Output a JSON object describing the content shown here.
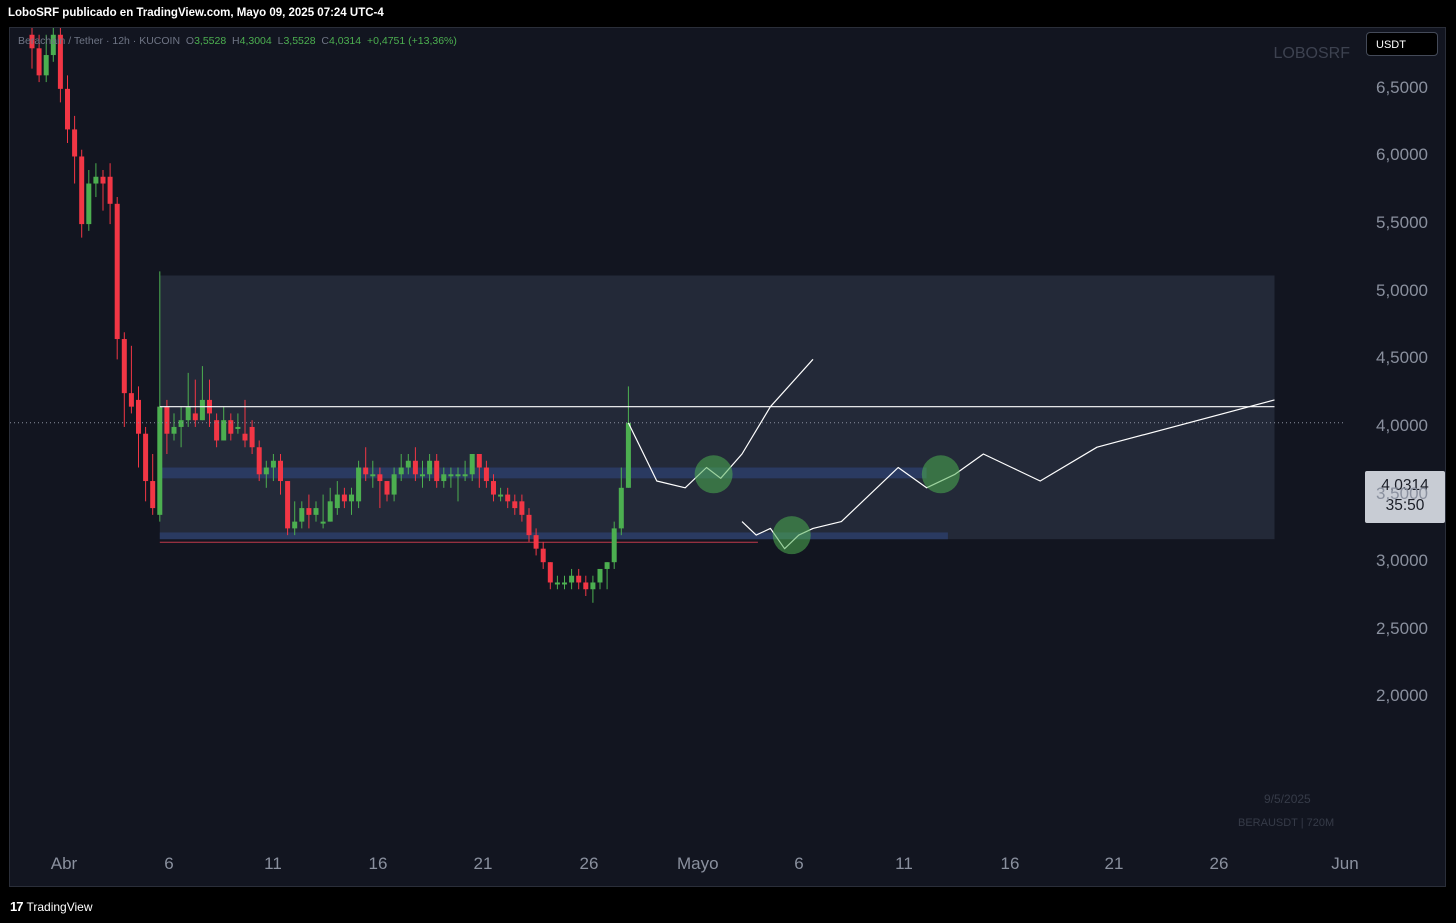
{
  "header": {
    "publisher_line": "LoboSRF publicado en TradingView.com, Mayo 09, 2025 07:24 UTC-4"
  },
  "legend": {
    "symbol_desc": "Berachain / Tether · 12h · KUCOIN",
    "o_label": "O",
    "o_value": "3,5528",
    "h_label": "H",
    "h_value": "4,3004",
    "l_label": "L",
    "l_value": "3,5528",
    "c_label": "C",
    "c_value": "4,0314",
    "change": "+0,4751 (+13,36%)"
  },
  "watermark": "LOBOSRF",
  "currency_button": "USDT",
  "price_tag": {
    "price": "4,0314",
    "countdown": "35:50"
  },
  "footer_date": "9/5/2025",
  "footer_symbol": "BERAUSDT | 720M",
  "tradingview_logo": "TradingView",
  "colors": {
    "up": "#4caf50",
    "down": "#f23645",
    "background": "#121520",
    "zone": "#2a3040",
    "support": "#2b3c66",
    "target_circle": "#4caf50"
  },
  "chart_data": {
    "type": "candlestick",
    "timeframe": "12h",
    "y_ticks": [
      "6,5000",
      "6,0000",
      "5,5000",
      "5,0000",
      "4,5000",
      "4,0000",
      "3,5000",
      "3,0000",
      "2,5000",
      "2,0000"
    ],
    "y_tick_values": [
      6.5,
      6.0,
      5.5,
      5.0,
      4.5,
      4.0,
      3.5,
      3.0,
      2.5,
      2.0
    ],
    "x_ticks": [
      "Abr",
      "6",
      "11",
      "16",
      "21",
      "26",
      "Mayo",
      "6",
      "11",
      "16",
      "21",
      "26",
      "Jun"
    ],
    "ylim": [
      1.7,
      6.95
    ],
    "candles": [
      [
        6.9,
        6.8,
        6.95,
        6.65
      ],
      [
        6.8,
        6.6,
        6.9,
        6.55
      ],
      [
        6.6,
        6.75,
        6.9,
        6.55
      ],
      [
        6.75,
        6.9,
        6.95,
        6.7
      ],
      [
        6.9,
        6.5,
        6.95,
        6.4
      ],
      [
        6.5,
        6.2,
        6.6,
        6.1
      ],
      [
        6.2,
        6.0,
        6.3,
        5.8
      ],
      [
        6.0,
        5.5,
        6.05,
        5.4
      ],
      [
        5.5,
        5.8,
        5.9,
        5.45
      ],
      [
        5.8,
        5.85,
        5.95,
        5.7
      ],
      [
        5.85,
        5.8,
        5.9,
        5.6
      ],
      [
        5.85,
        5.65,
        5.95,
        5.5
      ],
      [
        5.65,
        4.65,
        5.7,
        4.5
      ],
      [
        4.65,
        4.25,
        4.7,
        4.0
      ],
      [
        4.25,
        4.15,
        4.6,
        4.1
      ],
      [
        4.2,
        3.95,
        4.3,
        3.7
      ],
      [
        3.95,
        3.6,
        4.0,
        3.45
      ],
      [
        3.6,
        3.4,
        3.8,
        3.35
      ],
      [
        3.35,
        4.15,
        5.15,
        3.3
      ],
      [
        4.15,
        3.95,
        4.2,
        3.8
      ],
      [
        3.95,
        4.0,
        4.1,
        3.9
      ],
      [
        4.0,
        4.05,
        4.15,
        3.85
      ],
      [
        4.05,
        4.15,
        4.4,
        4.0
      ],
      [
        4.1,
        4.05,
        4.35,
        4.0
      ],
      [
        4.05,
        4.2,
        4.45,
        4.05
      ],
      [
        4.2,
        4.1,
        4.35,
        4.0
      ],
      [
        4.05,
        3.9,
        4.1,
        3.85
      ],
      [
        3.9,
        4.05,
        4.15,
        3.9
      ],
      [
        4.05,
        3.95,
        4.1,
        3.9
      ],
      [
        4.0,
        4.0,
        4.1,
        3.95
      ],
      [
        3.95,
        3.9,
        4.2,
        3.85
      ],
      [
        4.0,
        3.85,
        4.05,
        3.8
      ],
      [
        3.85,
        3.65,
        3.9,
        3.6
      ],
      [
        3.65,
        3.7,
        3.75,
        3.55
      ],
      [
        3.7,
        3.75,
        3.8,
        3.6
      ],
      [
        3.75,
        3.6,
        3.8,
        3.5
      ],
      [
        3.6,
        3.25,
        3.6,
        3.2
      ],
      [
        3.25,
        3.3,
        3.45,
        3.2
      ],
      [
        3.3,
        3.4,
        3.45,
        3.25
      ],
      [
        3.4,
        3.35,
        3.5,
        3.25
      ],
      [
        3.35,
        3.4,
        3.45,
        3.3
      ],
      [
        3.3,
        3.3,
        3.5,
        3.25
      ],
      [
        3.3,
        3.45,
        3.55,
        3.3
      ],
      [
        3.4,
        3.5,
        3.6,
        3.35
      ],
      [
        3.5,
        3.45,
        3.55,
        3.4
      ],
      [
        3.45,
        3.5,
        3.55,
        3.35
      ],
      [
        3.45,
        3.7,
        3.75,
        3.4
      ],
      [
        3.7,
        3.65,
        3.85,
        3.6
      ],
      [
        3.65,
        3.65,
        3.75,
        3.55
      ],
      [
        3.65,
        3.6,
        3.7,
        3.4
      ],
      [
        3.6,
        3.5,
        3.6,
        3.45
      ],
      [
        3.5,
        3.65,
        3.7,
        3.45
      ],
      [
        3.65,
        3.7,
        3.8,
        3.6
      ],
      [
        3.7,
        3.75,
        3.8,
        3.65
      ],
      [
        3.75,
        3.65,
        3.85,
        3.6
      ],
      [
        3.65,
        3.65,
        3.75,
        3.55
      ],
      [
        3.65,
        3.75,
        3.8,
        3.6
      ],
      [
        3.75,
        3.6,
        3.8,
        3.55
      ],
      [
        3.6,
        3.65,
        3.7,
        3.55
      ],
      [
        3.65,
        3.65,
        3.7,
        3.55
      ],
      [
        3.65,
        3.65,
        3.7,
        3.45
      ],
      [
        3.65,
        3.65,
        3.75,
        3.6
      ],
      [
        3.65,
        3.8,
        3.8,
        3.6
      ],
      [
        3.8,
        3.7,
        3.8,
        3.55
      ],
      [
        3.7,
        3.6,
        3.75,
        3.55
      ],
      [
        3.6,
        3.5,
        3.65,
        3.45
      ],
      [
        3.5,
        3.5,
        3.55,
        3.45
      ],
      [
        3.5,
        3.45,
        3.55,
        3.4
      ],
      [
        3.45,
        3.4,
        3.5,
        3.35
      ],
      [
        3.45,
        3.35,
        3.5,
        3.3
      ],
      [
        3.35,
        3.2,
        3.4,
        3.15
      ],
      [
        3.2,
        3.1,
        3.25,
        3.05
      ],
      [
        3.1,
        3.0,
        3.15,
        2.95
      ],
      [
        3.0,
        2.85,
        3.0,
        2.8
      ],
      [
        2.85,
        2.85,
        2.9,
        2.8
      ],
      [
        2.85,
        2.85,
        2.9,
        2.8
      ],
      [
        2.85,
        2.9,
        2.95,
        2.8
      ],
      [
        2.9,
        2.85,
        2.95,
        2.8
      ],
      [
        2.85,
        2.8,
        2.9,
        2.75
      ],
      [
        2.8,
        2.85,
        2.9,
        2.7
      ],
      [
        2.85,
        2.95,
        2.95,
        2.8
      ],
      [
        2.95,
        3.0,
        3.0,
        2.8
      ],
      [
        3.0,
        3.25,
        3.3,
        2.95
      ],
      [
        3.25,
        3.55,
        3.7,
        3.2
      ],
      [
        3.55,
        4.03,
        4.3,
        3.55
      ]
    ],
    "range_box": {
      "from_index": 18,
      "to_index": 175,
      "top": 5.12,
      "bottom": 3.17
    },
    "resistance_line": {
      "from_index": 18,
      "to_index": 175,
      "value": 4.15
    },
    "support_zones": [
      {
        "from_index": 18,
        "to_index": 126,
        "top": 3.7,
        "bottom": 3.62
      },
      {
        "from_index": 18,
        "to_index": 129,
        "top": 3.22,
        "bottom": 3.17
      }
    ],
    "last_price": 4.0314,
    "projection_paths": [
      [
        [
          84,
          4.03
        ],
        [
          88,
          3.6
        ],
        [
          92,
          3.55
        ],
        [
          95,
          3.7
        ],
        [
          97,
          3.62
        ],
        [
          100,
          3.8
        ],
        [
          104,
          4.15
        ],
        [
          110,
          4.5
        ]
      ],
      [
        [
          100,
          3.3
        ],
        [
          102,
          3.2
        ],
        [
          104,
          3.25
        ],
        [
          106,
          3.1
        ],
        [
          108,
          3.2
        ],
        [
          110,
          3.25
        ],
        [
          114,
          3.3
        ],
        [
          122,
          3.7
        ],
        [
          126,
          3.55
        ],
        [
          130,
          3.65
        ],
        [
          134,
          3.8
        ],
        [
          138,
          3.7
        ],
        [
          142,
          3.6
        ],
        [
          150,
          3.85
        ],
        [
          175,
          4.2
        ]
      ]
    ],
    "target_circles": [
      {
        "index": 96,
        "value": 3.65
      },
      {
        "index": 107,
        "value": 3.2
      },
      {
        "index": 128,
        "value": 3.65
      }
    ]
  }
}
